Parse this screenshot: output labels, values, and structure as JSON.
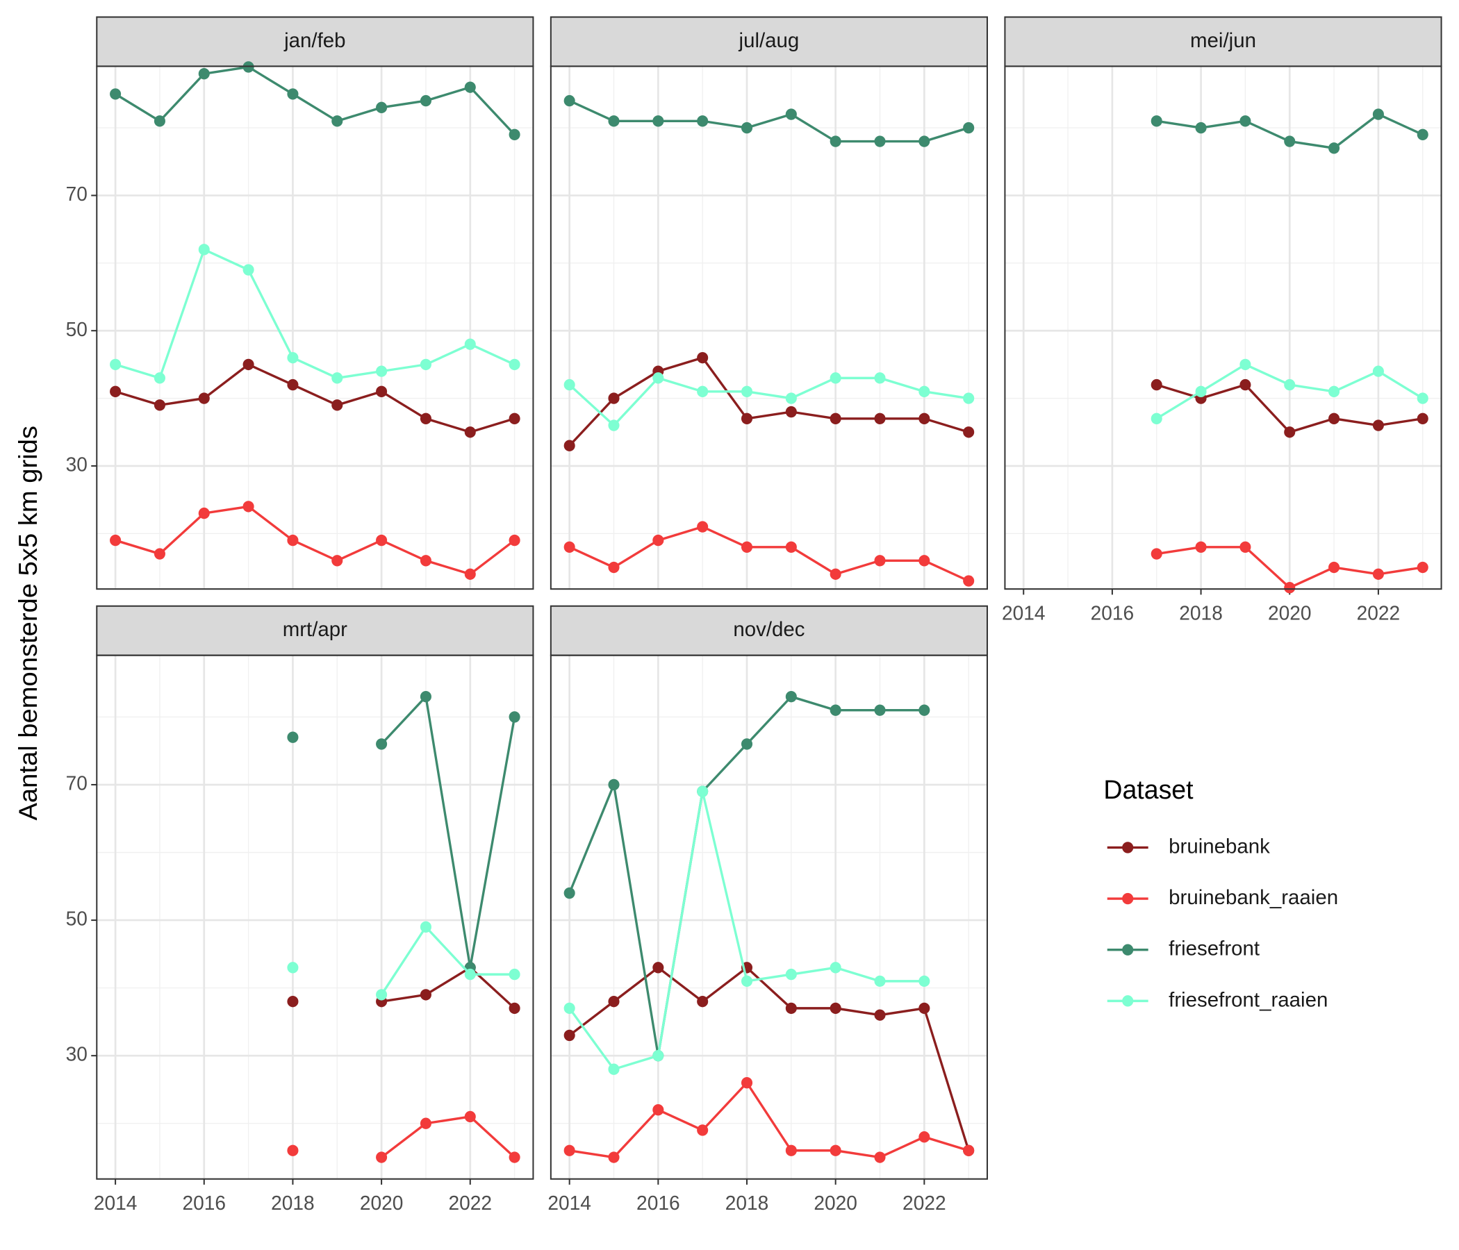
{
  "chart_data": {
    "type": "line",
    "y_label": "Aantal bemonsterde 5x5 km grids",
    "legend_title": "Dataset",
    "x": [
      2014,
      2015,
      2016,
      2017,
      2018,
      2019,
      2020,
      2021,
      2022,
      2023
    ],
    "xlim": [
      2013.58,
      2023.42
    ],
    "xticks": [
      2014,
      2016,
      2018,
      2020,
      2022
    ],
    "minor_xticks": [
      2015,
      2017,
      2019,
      2021,
      2023
    ],
    "ylim": [
      11.8,
      89.1
    ],
    "yticks": [
      30,
      50,
      70
    ],
    "minor_yticks": [
      20,
      40,
      60,
      80
    ],
    "grid": true,
    "series": [
      {
        "name": "bruinebank",
        "color": "#8b1e1e"
      },
      {
        "name": "bruinebank_raaien",
        "color": "#f23b3b"
      },
      {
        "name": "friesefront",
        "color": "#3d8a6e"
      },
      {
        "name": "friesefront_raaien",
        "color": "#7dffd2"
      }
    ],
    "panels": [
      {
        "title": "jan/feb",
        "values": [
          [
            41,
            39,
            40,
            45,
            42,
            39,
            41,
            37,
            35,
            37
          ],
          [
            19,
            17,
            23,
            24,
            19,
            16,
            19,
            16,
            14,
            19
          ],
          [
            85,
            81,
            88,
            89,
            85,
            81,
            83,
            84,
            86,
            79
          ],
          [
            45,
            43,
            62,
            59,
            46,
            43,
            44,
            45,
            48,
            45
          ]
        ]
      },
      {
        "title": "jul/aug",
        "values": [
          [
            33,
            40,
            44,
            46,
            37,
            38,
            37,
            37,
            37,
            35
          ],
          [
            18,
            15,
            19,
            21,
            18,
            18,
            14,
            16,
            16,
            13
          ],
          [
            84,
            81,
            81,
            81,
            80,
            82,
            78,
            78,
            78,
            80
          ],
          [
            42,
            36,
            43,
            41,
            41,
            40,
            43,
            43,
            41,
            40
          ]
        ]
      },
      {
        "title": "mei/jun",
        "values": [
          [
            null,
            null,
            null,
            42,
            40,
            42,
            35,
            37,
            36,
            37
          ],
          [
            null,
            null,
            null,
            17,
            18,
            18,
            12,
            15,
            14,
            15
          ],
          [
            null,
            null,
            null,
            81,
            80,
            81,
            78,
            77,
            82,
            79
          ],
          [
            null,
            null,
            null,
            37,
            41,
            45,
            42,
            41,
            44,
            40
          ]
        ]
      },
      {
        "title": "mrt/apr",
        "values": [
          [
            null,
            null,
            null,
            null,
            38,
            null,
            38,
            39,
            43,
            37
          ],
          [
            null,
            null,
            null,
            null,
            16,
            null,
            15,
            20,
            21,
            15
          ],
          [
            null,
            null,
            null,
            null,
            77,
            null,
            76,
            83,
            43,
            80
          ],
          [
            null,
            null,
            null,
            null,
            43,
            null,
            39,
            49,
            42,
            42
          ]
        ]
      },
      {
        "title": "nov/dec",
        "values": [
          [
            33,
            38,
            43,
            38,
            43,
            37,
            37,
            36,
            37,
            16
          ],
          [
            16,
            15,
            22,
            19,
            26,
            16,
            16,
            15,
            18,
            16
          ],
          [
            54,
            70,
            30,
            69,
            76,
            83,
            81,
            81,
            81,
            null
          ],
          [
            37,
            28,
            30,
            69,
            41,
            42,
            43,
            41,
            41,
            null
          ]
        ]
      }
    ]
  }
}
